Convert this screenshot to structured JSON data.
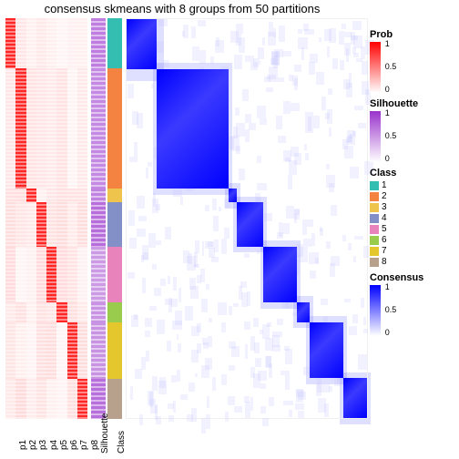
{
  "title": "consensus skmeans with 8 groups from 50 partitions",
  "prob_columns": [
    "p1",
    "p2",
    "p3",
    "p4",
    "p5",
    "p6",
    "p7",
    "p8"
  ],
  "annotation_columns": [
    "Silhouette",
    "Class"
  ],
  "class_colors": [
    "#33beb1",
    "#f48341",
    "#eec44c",
    "#8390c7",
    "#e884bb",
    "#99cc4c",
    "#e3c72d",
    "#b7a18d"
  ],
  "class_labels": [
    "1",
    "2",
    "3",
    "4",
    "5",
    "6",
    "7",
    "8"
  ],
  "group_heights": [
    0.125,
    0.3,
    0.035,
    0.11,
    0.14,
    0.05,
    0.14,
    0.1
  ],
  "prob_legend": {
    "title": "Prob",
    "ticks": [
      "1",
      "0.5",
      "0"
    ],
    "colors": [
      "#ff0000",
      "#ffffff"
    ]
  },
  "sil_legend": {
    "title": "Silhouette",
    "ticks": [
      "1",
      "0.5",
      "0"
    ],
    "colors": [
      "#9933cc",
      "#ffffff"
    ]
  },
  "consensus_legend": {
    "title": "Consensus",
    "ticks": [
      "1",
      "0.5",
      "0"
    ],
    "colors": [
      "#0000ff",
      "#ffffff"
    ]
  },
  "class_legend_title": "Class",
  "prob_intensity_diag": 0.85,
  "prob_intensity_off": 0.12,
  "sil_base_intensity": 0.75,
  "consensus_noise_color": "#c8c8ff",
  "fontsize_title": 13,
  "fontsize_label": 10,
  "background": "#ffffff"
}
